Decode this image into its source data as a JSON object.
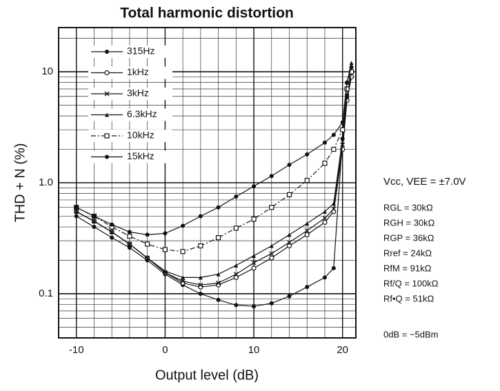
{
  "chart_data": {
    "type": "line",
    "title": "Total harmonic distortion",
    "x_label": "Output level (dB)",
    "y_label": "THD + N (%)",
    "log_y": true,
    "grid": true,
    "legend": "top-left",
    "x": [
      -10,
      -8,
      -6,
      -4,
      -2,
      0,
      2,
      4,
      6,
      8,
      10,
      12,
      14,
      16,
      18,
      19,
      20,
      20.5,
      21
    ],
    "xlim": [
      -12,
      21.5
    ],
    "xticks": [
      -10,
      0,
      10,
      20
    ],
    "x_minor_ticks": [
      -8,
      -6,
      -4,
      -2,
      2,
      4,
      6,
      8,
      12,
      14,
      16,
      18
    ],
    "ylim": [
      0.04,
      25
    ],
    "yticks": [
      {
        "value": 0.1,
        "label": "0.1"
      },
      {
        "value": 1,
        "label": "1.0"
      },
      10
    ],
    "y_minor_ticks": [
      0.05,
      0.06,
      0.07,
      0.08,
      0.09,
      0.2,
      0.3,
      0.4,
      0.5,
      0.6,
      0.7,
      0.8,
      0.9,
      2,
      3,
      4,
      5,
      6,
      7,
      8,
      9,
      20
    ],
    "series": [
      {
        "name": "315Hz",
        "color": "#111111",
        "marker": "dot",
        "dash": "none",
        "values": [
          0.5,
          0.4,
          0.32,
          0.26,
          0.2,
          0.15,
          0.12,
          0.1,
          0.088,
          0.079,
          0.077,
          0.082,
          0.095,
          0.115,
          0.14,
          0.17,
          2.5,
          6,
          9
        ]
      },
      {
        "name": "1kHz",
        "color": "#111111",
        "marker": "circle",
        "dash": "none",
        "values": [
          0.55,
          0.45,
          0.36,
          0.28,
          0.21,
          0.155,
          0.125,
          0.115,
          0.12,
          0.14,
          0.17,
          0.21,
          0.27,
          0.34,
          0.44,
          0.55,
          2,
          5.5,
          9
        ]
      },
      {
        "name": "3kHz",
        "color": "#111111",
        "marker": "x",
        "dash": "none",
        "values": [
          0.55,
          0.45,
          0.36,
          0.28,
          0.21,
          0.155,
          0.13,
          0.12,
          0.125,
          0.15,
          0.19,
          0.23,
          0.29,
          0.37,
          0.48,
          0.58,
          2.2,
          6,
          10
        ]
      },
      {
        "name": "6.3kHz",
        "color": "#111111",
        "marker": "triangle",
        "dash": "none",
        "values": [
          0.55,
          0.45,
          0.36,
          0.28,
          0.21,
          0.16,
          0.14,
          0.14,
          0.15,
          0.18,
          0.22,
          0.27,
          0.34,
          0.43,
          0.55,
          0.65,
          2.5,
          8,
          12
        ]
      },
      {
        "name": "10kHz",
        "color": "#111111",
        "marker": "square",
        "dash": "7,3,2,3",
        "values": [
          0.6,
          0.5,
          0.4,
          0.33,
          0.28,
          0.25,
          0.24,
          0.27,
          0.32,
          0.39,
          0.47,
          0.6,
          0.78,
          1.05,
          1.5,
          2,
          3,
          7,
          10
        ]
      },
      {
        "name": "15kHz",
        "color": "#111111",
        "marker": "dot",
        "dash": "none",
        "values": [
          0.6,
          0.5,
          0.42,
          0.36,
          0.34,
          0.35,
          0.41,
          0.5,
          0.6,
          0.75,
          0.93,
          1.15,
          1.45,
          1.8,
          2.3,
          2.7,
          3.5,
          8,
          11
        ]
      }
    ],
    "annotations": [
      "Vcc, VEE = ±7.0V",
      "RGL = 30kΩ",
      "RGH = 30kΩ",
      "RGP = 36kΩ",
      "Rref = 24kΩ",
      "RfM = 91kΩ",
      "Rf/Q = 100kΩ",
      "Rf•Q = 51kΩ",
      "0dB = −5dBm"
    ]
  }
}
